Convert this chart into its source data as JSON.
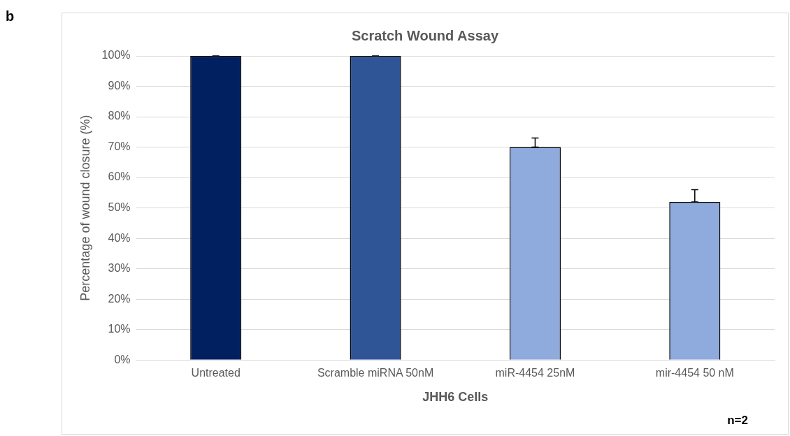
{
  "chart_data": {
    "type": "bar",
    "title": "Scratch Wound Assay",
    "xlabel": "JHH6 Cells",
    "ylabel": "Percentage of wound closure (%)",
    "categories": [
      "Untreated",
      "Scramble miRNA 50nM",
      "miR-4454 25nM",
      "mir-4454 50 nM"
    ],
    "values": [
      100,
      100,
      70,
      52
    ],
    "colors": [
      "#002060",
      "#2f5597",
      "#8faadc",
      "#8faadc"
    ],
    "errors": [
      0,
      0,
      [
        70,
        73
      ],
      [
        52,
        56
      ]
    ],
    "ylim": [
      0,
      100
    ],
    "yticks": [
      {
        "value": 0,
        "label": "0%"
      },
      {
        "value": 10,
        "label": "10%"
      },
      {
        "value": 20,
        "label": "20%"
      },
      {
        "value": 30,
        "label": "30%"
      },
      {
        "value": 40,
        "label": "40%"
      },
      {
        "value": 50,
        "label": "50%"
      },
      {
        "value": 60,
        "label": "60%"
      },
      {
        "value": 70,
        "label": "70%"
      },
      {
        "value": 80,
        "label": "80%"
      },
      {
        "value": 90,
        "label": "90%"
      },
      {
        "value": 100,
        "label": "100%"
      }
    ],
    "grid": "y",
    "legend": false,
    "annotations": [
      "b",
      "n=2"
    ]
  }
}
